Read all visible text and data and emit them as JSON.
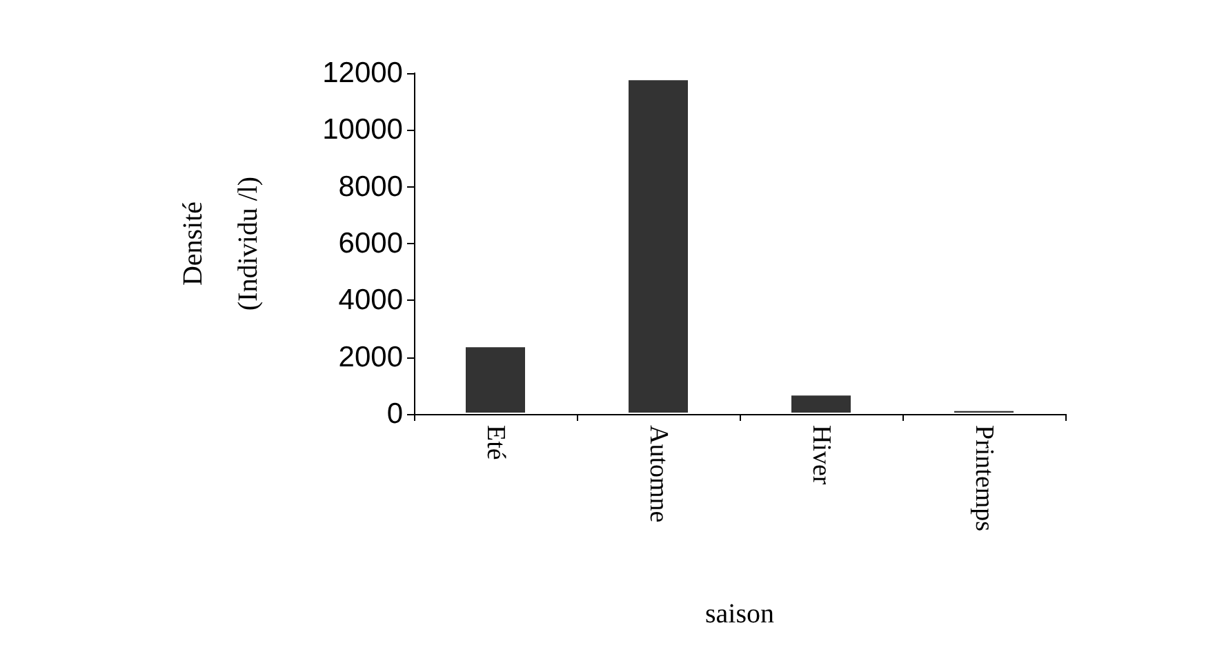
{
  "chart_data": {
    "type": "bar",
    "categories": [
      "Eté",
      "Automne",
      "Hiver",
      "Printemps"
    ],
    "values": [
      2400,
      11800,
      700,
      150
    ],
    "color": "#333333",
    "xlabel": "saison",
    "ylabel": "Densité\n(Individu /l)",
    "ylim": [
      0,
      12000
    ],
    "yticks": [
      0,
      2000,
      4000,
      6000,
      8000,
      10000,
      12000
    ],
    "grid": false
  }
}
